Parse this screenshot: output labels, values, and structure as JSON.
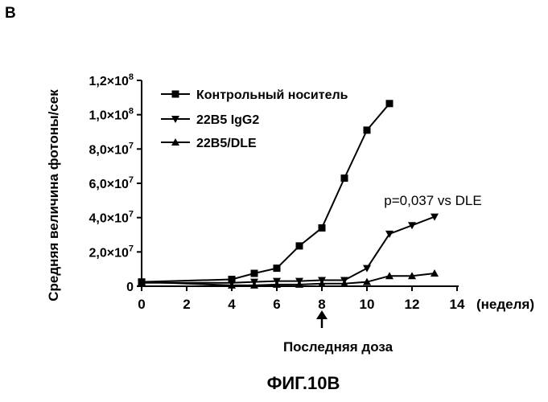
{
  "panel_label": "B",
  "figure_caption": "ФИГ.10B",
  "chart_data": {
    "type": "line",
    "ylabel": "Средняя величина фотоны/сек",
    "xlabel": "(неделя)",
    "xlim": [
      0,
      14
    ],
    "ylim": [
      0,
      120000000
    ],
    "x_ticks": [
      "0",
      "2",
      "4",
      "6",
      "8",
      "10",
      "12",
      "14"
    ],
    "x_tick_values": [
      0,
      2,
      4,
      6,
      8,
      10,
      12,
      14
    ],
    "y_ticks": [
      {
        "value": 0,
        "base": "0",
        "exp": ""
      },
      {
        "value": 20000000,
        "base": "2,0×10",
        "exp": "7"
      },
      {
        "value": 40000000,
        "base": "4,0×10",
        "exp": "7"
      },
      {
        "value": 60000000,
        "base": "6,0×10",
        "exp": "7"
      },
      {
        "value": 80000000,
        "base": "8,0×10",
        "exp": "7"
      },
      {
        "value": 100000000,
        "base": "1,0×10",
        "exp": "8"
      },
      {
        "value": 120000000,
        "base": "1,2×10",
        "exp": "8"
      }
    ],
    "legend_position": "top-left",
    "series": [
      {
        "name": "Контрольный носитель",
        "marker": "square",
        "x": [
          0,
          4,
          5,
          6,
          7,
          8,
          9,
          10,
          11
        ],
        "y": [
          2500000,
          4000000,
          7500000,
          10500000,
          23500000,
          34000000,
          63000000,
          91000000,
          106500000
        ]
      },
      {
        "name": "22B5 IgG2",
        "marker": "triangle-down",
        "x": [
          0,
          4,
          5,
          6,
          7,
          8,
          9,
          10,
          11,
          12,
          13
        ],
        "y": [
          2000000,
          2000000,
          2500000,
          3000000,
          3000000,
          3500000,
          3500000,
          10500000,
          30500000,
          35500000,
          40500000
        ]
      },
      {
        "name": "22B5/DLE",
        "marker": "triangle-up",
        "x": [
          0,
          4,
          5,
          6,
          7,
          8,
          9,
          10,
          11,
          12,
          13
        ],
        "y": [
          2500000,
          500000,
          500000,
          1000000,
          1000000,
          1500000,
          1500000,
          2500000,
          6000000,
          6000000,
          7500000
        ]
      }
    ],
    "annotations": [
      {
        "text": "p=0,037 vs DLE"
      },
      {
        "text": "Последняя доза",
        "arrow_at_x": 8
      }
    ]
  }
}
